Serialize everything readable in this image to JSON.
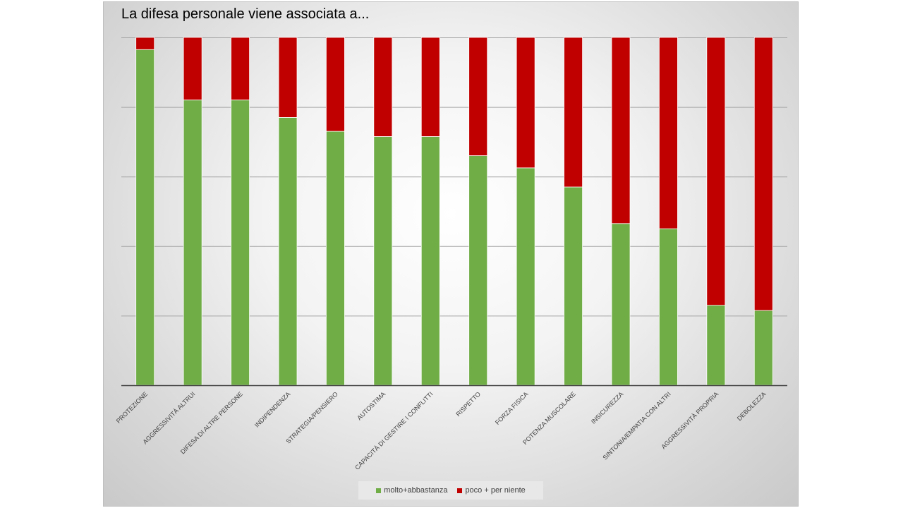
{
  "chart_data": {
    "type": "bar",
    "stacked": true,
    "title": "La difesa personale viene associata a...",
    "categories": [
      "PROTEZIONE",
      "AGGRESSIVITÀ ALTRUI",
      "DIFESA DI ALTRE PERSONE",
      "INDIPENDENZA",
      "STRATEGIA/PENSIERO",
      "AUTOSTIMA",
      "CAPACITÀ DI GESTIRE I CONFLITTI",
      "RISPETTO",
      "FORZA FISICA",
      "POTENZA MUSCOLARE",
      "INSICUREZZA",
      "SINTONIA/EMPATIA CON ALTRI",
      "AGGRESSIVITÀ PROPRIA",
      "DEBOLEZZA"
    ],
    "series": [
      {
        "name": "molto+abbastanza",
        "color": "#70ad47",
        "values": [
          96.5,
          82,
          82,
          77,
          73,
          71.5,
          71.5,
          66,
          62.5,
          57,
          46.5,
          45,
          23,
          21.5
        ]
      },
      {
        "name": "poco + per niente",
        "color": "#c00000",
        "values": [
          3.5,
          18,
          18,
          23,
          27,
          28.5,
          28.5,
          34,
          37.5,
          43,
          53.5,
          55,
          77,
          78.5
        ]
      }
    ],
    "xlabel": "",
    "ylabel": "",
    "ylim": [
      0,
      100
    ],
    "yticks_unlabeled": 5,
    "grid": true,
    "legend_position": "bottom"
  }
}
